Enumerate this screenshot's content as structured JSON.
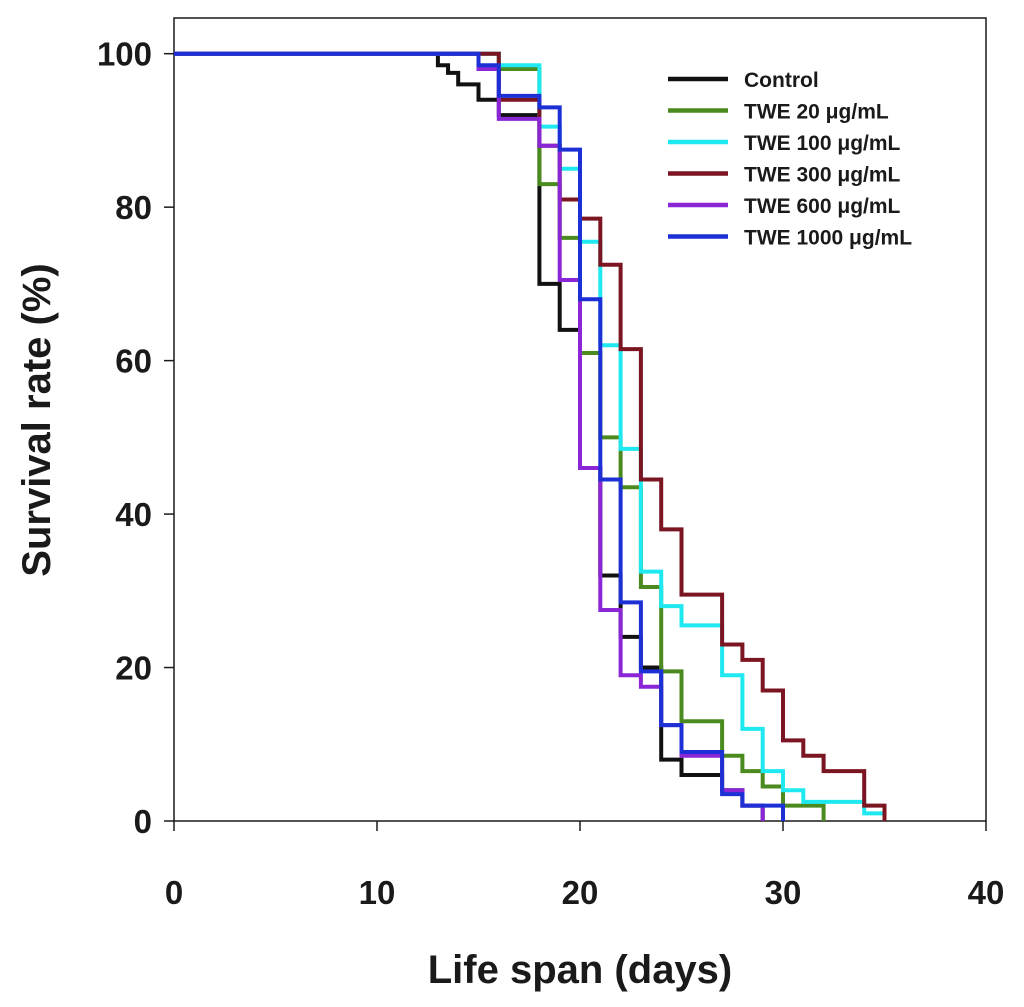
{
  "chart_data": {
    "type": "line",
    "step": true,
    "title": "",
    "xlabel": "Life span (days)",
    "ylabel": "Survival rate (%)",
    "xlim": [
      0,
      40
    ],
    "ylim": [
      0,
      100
    ],
    "xticks": [
      0,
      10,
      20,
      30,
      40
    ],
    "yticks": [
      0,
      20,
      40,
      60,
      80,
      100
    ],
    "grid": false,
    "legend_position": "top-right",
    "series": [
      {
        "name": "Control",
        "color": "#111111",
        "x": [
          0,
          13,
          13.5,
          14,
          15,
          16,
          18,
          19,
          20,
          21,
          22,
          23,
          24,
          25,
          27,
          28,
          29
        ],
        "y": [
          100,
          98.5,
          97.5,
          96,
          94,
          92,
          70,
          64,
          46,
          32,
          24,
          20,
          8,
          6,
          4,
          2,
          0
        ]
      },
      {
        "name": "TWE 20 μg/mL",
        "color": "#4b8a1e",
        "x": [
          0,
          16,
          18,
          19,
          20,
          21,
          22,
          23,
          24,
          25,
          27,
          28,
          29,
          30,
          32
        ],
        "y": [
          100,
          98,
          83,
          76,
          61,
          50,
          43.5,
          30.5,
          19.5,
          13,
          8.5,
          6.5,
          4.5,
          2,
          0
        ]
      },
      {
        "name": "TWE 100 μg/mL",
        "color": "#1ee8f0",
        "x": [
          0,
          16,
          18,
          19,
          20,
          21,
          22,
          23,
          24,
          25,
          27,
          28,
          29,
          30,
          31,
          33,
          34,
          35
        ],
        "y": [
          100,
          98.5,
          90.5,
          85,
          75.5,
          62,
          48.5,
          32.5,
          28,
          25.5,
          19,
          12,
          6.5,
          4,
          2.5,
          2.5,
          1,
          0
        ]
      },
      {
        "name": "TWE 300 μg/mL",
        "color": "#7b1522",
        "x": [
          0,
          16,
          18,
          19,
          20,
          21,
          22,
          23,
          24,
          25,
          27,
          28,
          29,
          30,
          31,
          32,
          34,
          35
        ],
        "y": [
          100,
          94,
          88,
          81,
          78.5,
          72.5,
          61.5,
          44.5,
          38,
          29.5,
          23,
          21,
          17,
          10.5,
          8.5,
          6.5,
          2,
          0
        ]
      },
      {
        "name": "TWE 600 μg/mL",
        "color": "#8a26d6",
        "x": [
          0,
          15,
          16,
          18,
          19,
          20,
          21,
          22,
          23,
          24,
          25,
          27,
          28,
          29
        ],
        "y": [
          100,
          98,
          91.5,
          88,
          70.5,
          46,
          27.5,
          19,
          17.5,
          12.5,
          8.5,
          4,
          2,
          0
        ]
      },
      {
        "name": "TWE 1000 μg/mL",
        "color": "#1c30d6",
        "x": [
          0,
          15,
          16,
          18,
          19,
          20,
          21,
          22,
          23,
          24,
          25,
          27,
          28,
          30
        ],
        "y": [
          100,
          98.5,
          94.5,
          93,
          87.5,
          68,
          44.5,
          28.5,
          19.5,
          12.5,
          9,
          3.5,
          2,
          0
        ]
      }
    ]
  }
}
